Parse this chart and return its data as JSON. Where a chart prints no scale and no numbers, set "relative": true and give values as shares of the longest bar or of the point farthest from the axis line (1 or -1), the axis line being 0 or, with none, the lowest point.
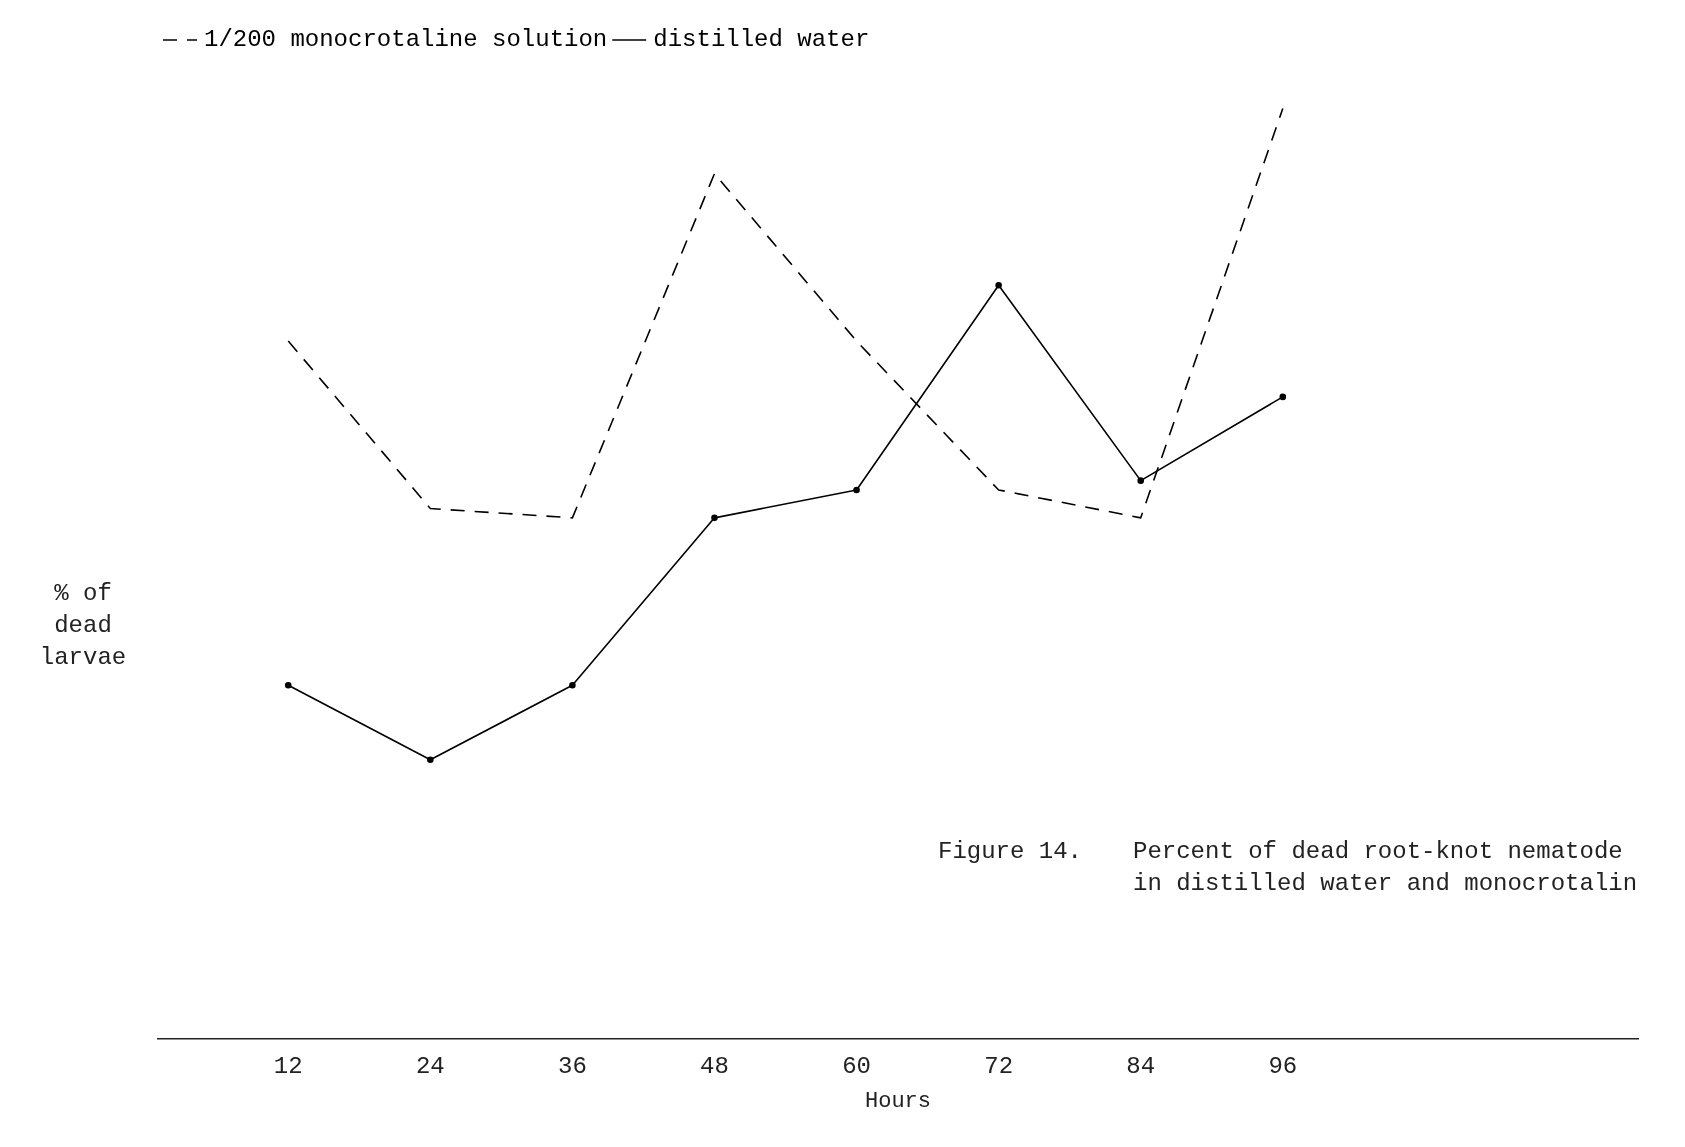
{
  "chart_data": {
    "type": "line",
    "relative": true,
    "xlabel": "Hours",
    "ylabel": "% of dead larvae",
    "x": [
      12,
      24,
      36,
      48,
      60,
      72,
      84,
      96
    ],
    "xlim": [
      1,
      126
    ],
    "xticks": [
      12,
      24,
      36,
      48,
      60,
      72,
      84,
      96
    ],
    "grid": false,
    "legend": "top left",
    "series": [
      {
        "name": "1/200 monocrotaline solution",
        "color": "#000000",
        "line_style": "dashed",
        "marker": "none",
        "values": [
          0.75,
          0.57,
          0.56,
          0.93,
          0.75,
          0.59,
          0.56,
          1.0
        ]
      },
      {
        "name": "distilled water",
        "color": "#000000",
        "line_style": "solid",
        "marker": "circle",
        "values": [
          0.38,
          0.3,
          0.38,
          0.56,
          0.59,
          0.81,
          0.6,
          0.69
        ]
      }
    ],
    "annotations": [
      "Figure 14.",
      "Percent of dead root-knot nematode",
      "in distilled water and monocrotalin"
    ]
  }
}
